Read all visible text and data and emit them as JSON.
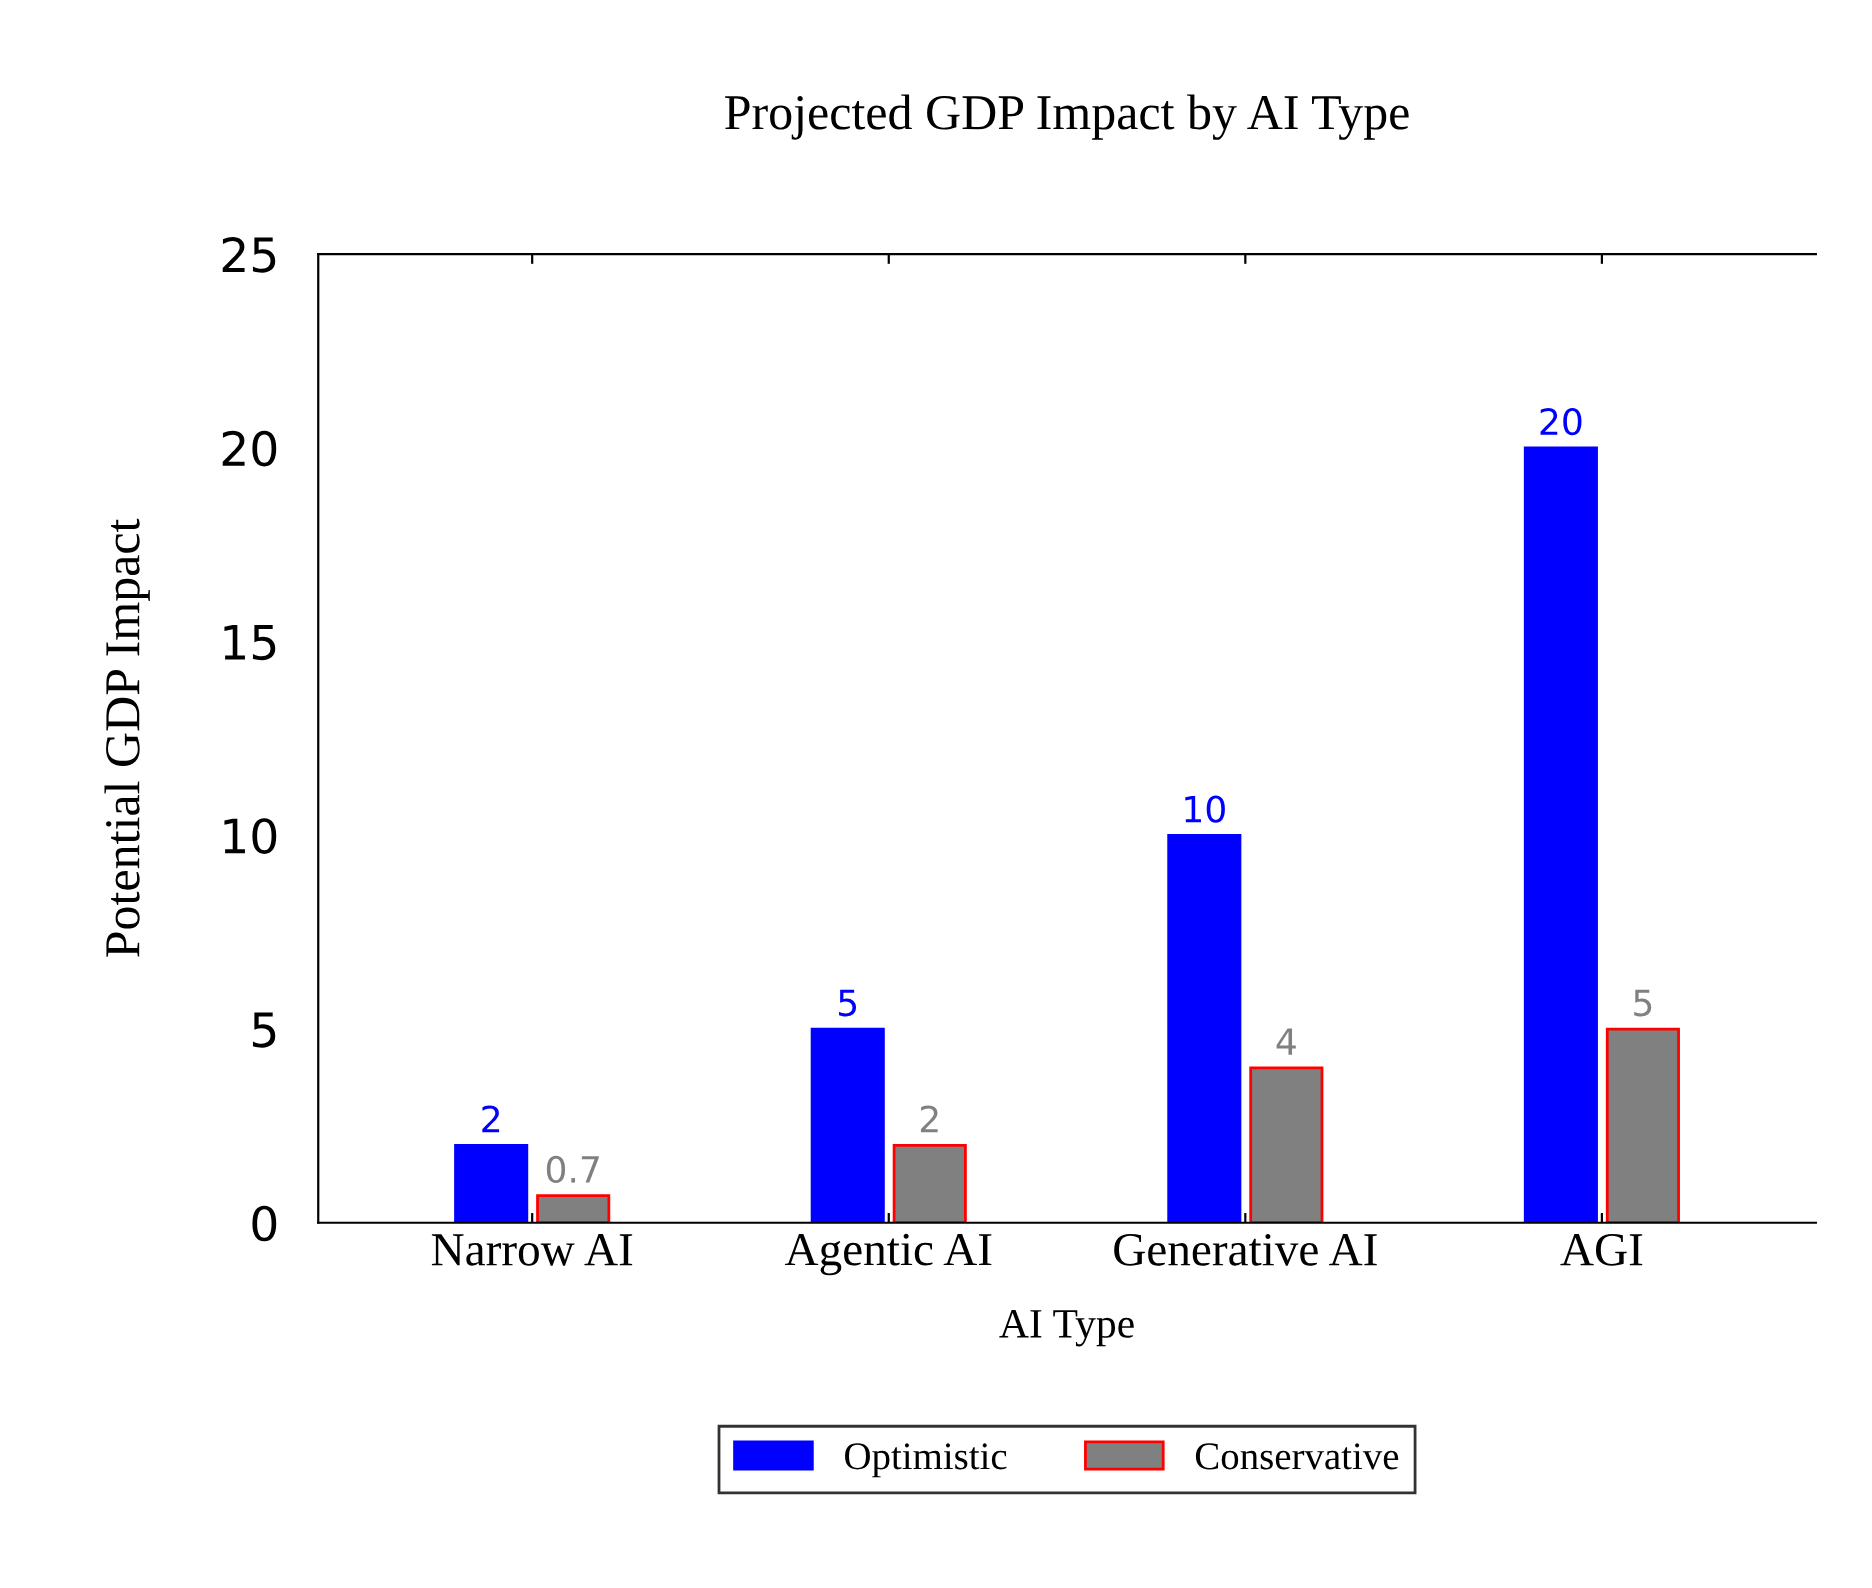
{
  "chart_data": {
    "type": "bar",
    "title": "Projected GDP Impact by AI Type",
    "xlabel": "AI Type",
    "ylabel": "Potential GDP Impact",
    "categories": [
      "Narrow AI",
      "Agentic AI",
      "Generative AI",
      "AGI"
    ],
    "series": [
      {
        "name": "Optimistic",
        "color": "#0000ff",
        "values": [
          2,
          5,
          10,
          20
        ]
      },
      {
        "name": "Conservative",
        "color": "#808080",
        "values": [
          0.7,
          2,
          4,
          5
        ]
      }
    ],
    "ylim": [
      0,
      25
    ],
    "yticks": [
      0,
      5,
      10,
      15,
      20,
      25
    ],
    "data_labels": true,
    "grid": false,
    "legend": "bottom"
  }
}
